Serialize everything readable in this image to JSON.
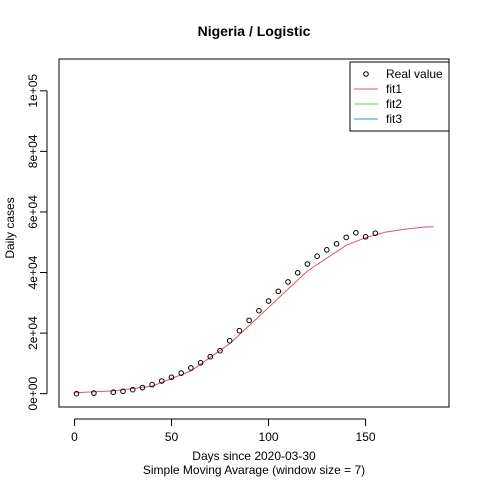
{
  "chart_data": {
    "type": "scatter",
    "title": "Nigeria / Logistic",
    "xlabel": "Days since 2020-03-30",
    "subtitle": "Simple Moving Avarage (window size = 7)",
    "ylabel": "Daily cases",
    "xlim": [
      -8,
      193
    ],
    "ylim": [
      -4400,
      110500
    ],
    "x_ticks": [
      0,
      50,
      100,
      150
    ],
    "x_tick_labels": [
      "0",
      "50",
      "100",
      "150"
    ],
    "y_ticks": [
      0,
      20000,
      40000,
      60000,
      80000,
      100000
    ],
    "y_tick_labels": [
      "0e+00",
      "2e+04",
      "4e+04",
      "6e+04",
      "8e+04",
      "1e+05"
    ],
    "legend_position": "top-right",
    "series": [
      {
        "name": "Real value",
        "kind": "points",
        "color": "#000000",
        "x": [
          1,
          10,
          20,
          25,
          30,
          35,
          40,
          45,
          50,
          55,
          60,
          65,
          70,
          75,
          80,
          85,
          90,
          95,
          100,
          105,
          110,
          115,
          120,
          125,
          130,
          135,
          140,
          145,
          150,
          155
        ],
        "y": [
          0,
          200,
          500,
          800,
          1300,
          2000,
          3000,
          4200,
          5400,
          6800,
          8500,
          10200,
          12200,
          14200,
          17500,
          20800,
          24200,
          27400,
          30600,
          33800,
          36900,
          39900,
          42800,
          45400,
          47500,
          49500,
          51600,
          53100,
          51800,
          53000
        ]
      },
      {
        "name": "fit1",
        "kind": "line",
        "color": "#df536b",
        "x": [
          0,
          20,
          40,
          60,
          80,
          100,
          120,
          140,
          150,
          160,
          170,
          180,
          185
        ],
        "y": [
          300,
          900,
          2500,
          7500,
          16500,
          28500,
          40500,
          49000,
          51500,
          53300,
          54300,
          55000,
          55100
        ]
      },
      {
        "name": "fit2",
        "kind": "line",
        "color": "#61d04f",
        "x": [],
        "y": []
      },
      {
        "name": "fit3",
        "kind": "line",
        "color": "#2297e6",
        "x": [],
        "y": []
      }
    ]
  }
}
